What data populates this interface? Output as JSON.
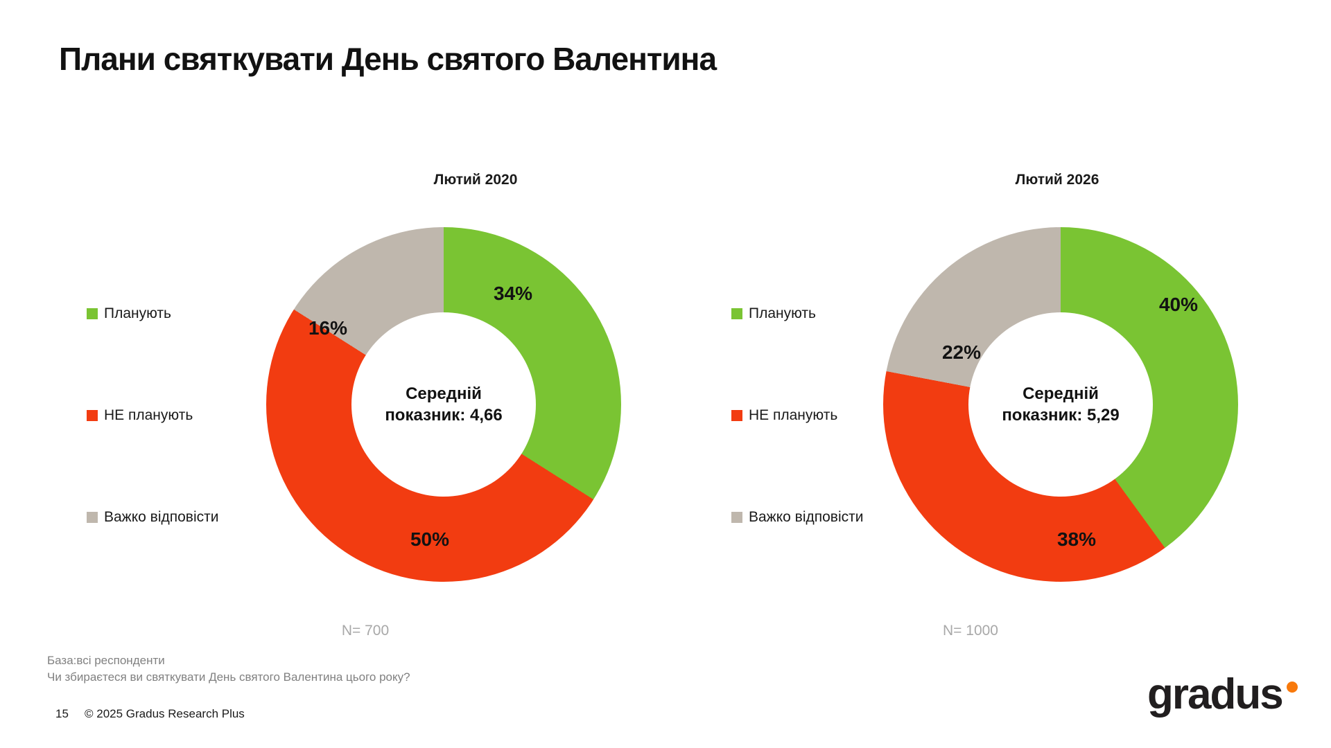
{
  "slide": {
    "title": "Плани святкувати День святого Валентина",
    "base_note": "База:всі респонденти",
    "question_note": "Чи збираєтеся ви святкувати День святого Валентина цього року?",
    "page_number": "15",
    "copyright": "© 2025 Gradus Research Plus",
    "logo_text": "gradus"
  },
  "colors": {
    "green": "#7AC433",
    "red": "#F23C11",
    "gray": "#BFB7AD",
    "n_label_gray": "#A8A8A8",
    "note_gray": "#808080",
    "logo_dot_orange": "#F8790B"
  },
  "chart_data": [
    {
      "type": "pie",
      "subtype": "donut",
      "title": "Лютий 2020",
      "n_label": "N= 700",
      "center_line1": "Середній",
      "center_line2": "показник: 4,66",
      "start_angle_deg": 0,
      "direction": "clockwise",
      "legend_position": "left",
      "slices": [
        {
          "label": "Планують",
          "value": 34,
          "display": "34%",
          "color": "#7AC433"
        },
        {
          "label": "НЕ планують",
          "value": 50,
          "display": "50%",
          "color": "#F23C11"
        },
        {
          "label": "Важко відповісти",
          "value": 16,
          "display": "16%",
          "color": "#BFB7AD"
        }
      ]
    },
    {
      "type": "pie",
      "subtype": "donut",
      "title": "Лютий 2026",
      "n_label": "N= 1000",
      "center_line1": "Середній",
      "center_line2": "показник: 5,29",
      "start_angle_deg": 0,
      "direction": "clockwise",
      "legend_position": "left",
      "slices": [
        {
          "label": "Планують",
          "value": 40,
          "display": "40%",
          "color": "#7AC433"
        },
        {
          "label": "НЕ планують",
          "value": 38,
          "display": "38%",
          "color": "#F23C11"
        },
        {
          "label": "Важко відповісти",
          "value": 22,
          "display": "22%",
          "color": "#BFB7AD"
        }
      ]
    }
  ]
}
